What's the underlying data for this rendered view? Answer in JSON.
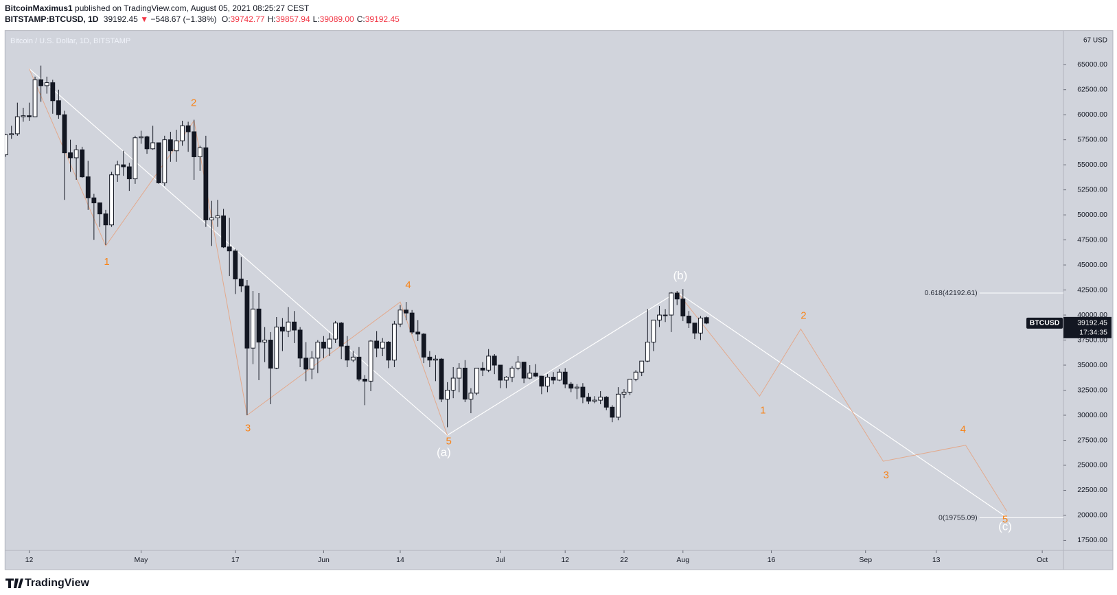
{
  "header": {
    "author": "BitcoinMaximus1",
    "published": "published on TradingView.com, August 05, 2021 08:25:27 CEST",
    "symbol": "BITSTAMP:BTCUSD, 1D",
    "last": "39192.45",
    "arrow": "▼",
    "change": "−548.67 (−1.38%)",
    "ohlc": [
      {
        "label": "O:",
        "value": "39742.77"
      },
      {
        "label": "H:",
        "value": "39857.94"
      },
      {
        "label": "L:",
        "value": "39089.00"
      },
      {
        "label": "C:",
        "value": "39192.45"
      }
    ]
  },
  "footer": "TradingView",
  "chart_data": {
    "type": "candlestick",
    "title": "Bitcoin / U.S. Dollar, 1D, BITSTAMP",
    "background": "#d1d4dc",
    "up_color": "#ffffff",
    "down_color": "#131722",
    "xlim": [
      -4.1,
      175.6
    ],
    "ylim": [
      16500,
      68400
    ],
    "grid": false,
    "xticks": [
      {
        "value": 0,
        "label": "12"
      },
      {
        "value": 19,
        "label": "May"
      },
      {
        "value": 35,
        "label": "17"
      },
      {
        "value": 50,
        "label": "Jun"
      },
      {
        "value": 63,
        "label": "14"
      },
      {
        "value": 80,
        "label": "Jul"
      },
      {
        "value": 91,
        "label": "12"
      },
      {
        "value": 101,
        "label": "22"
      },
      {
        "value": 111,
        "label": "Aug"
      },
      {
        "value": 126,
        "label": "16"
      },
      {
        "value": 142,
        "label": "Sep"
      },
      {
        "value": 154,
        "label": "13"
      },
      {
        "value": 172,
        "label": "Oct"
      }
    ],
    "yticks": [
      {
        "value": 17500,
        "label": "17500.00"
      },
      {
        "value": 20000,
        "label": "20000.00"
      },
      {
        "value": 22500,
        "label": "22500.00"
      },
      {
        "value": 25000,
        "label": "25000.00"
      },
      {
        "value": 27500,
        "label": "27500.00"
      },
      {
        "value": 30000,
        "label": "30000.00"
      },
      {
        "value": 32500,
        "label": "32500.00"
      },
      {
        "value": 35000,
        "label": "35000.00"
      },
      {
        "value": 37500,
        "label": "37500.00"
      },
      {
        "value": 40000,
        "label": "40000.00"
      },
      {
        "value": 42500,
        "label": "42500.00"
      },
      {
        "value": 45000,
        "label": "45000.00"
      },
      {
        "value": 47500,
        "label": "47500.00"
      },
      {
        "value": 50000,
        "label": "50000.00"
      },
      {
        "value": 52500,
        "label": "52500.00"
      },
      {
        "value": 55000,
        "label": "55000.00"
      },
      {
        "value": 57500,
        "label": "57500.00"
      },
      {
        "value": 60000,
        "label": "60000.00"
      },
      {
        "value": 62500,
        "label": "62500.00"
      },
      {
        "value": 65000,
        "label": "65000.00"
      }
    ],
    "scale_top_label": "67 USD",
    "x": [
      -4,
      -3,
      -2,
      -1,
      0,
      1,
      2,
      3,
      4,
      5,
      6,
      7,
      8,
      9,
      10,
      11,
      12,
      13,
      14,
      15,
      16,
      17,
      18,
      19,
      20,
      21,
      22,
      23,
      24,
      25,
      26,
      27,
      28,
      29,
      30,
      31,
      32,
      33,
      34,
      35,
      36,
      37,
      38,
      39,
      40,
      41,
      42,
      43,
      44,
      45,
      46,
      47,
      48,
      49,
      50,
      51,
      52,
      53,
      54,
      55,
      56,
      57,
      58,
      59,
      60,
      61,
      62,
      63,
      64,
      65,
      66,
      67,
      68,
      69,
      70,
      71,
      72,
      73,
      74,
      75,
      76,
      77,
      78,
      79,
      80,
      81,
      82,
      83,
      84,
      85,
      86,
      87,
      88,
      89,
      90,
      91,
      92,
      93,
      94,
      95,
      96,
      97,
      98,
      99,
      100,
      101,
      102,
      103,
      104,
      105,
      106,
      107,
      108,
      109,
      110,
      111,
      112,
      113,
      114,
      115
    ],
    "ohlc": [
      [
        56000,
        58100,
        55800,
        58000
      ],
      [
        58000,
        58900,
        57600,
        58100
      ],
      [
        58100,
        61200,
        57900,
        59800
      ],
      [
        59800,
        60700,
        59300,
        59900
      ],
      [
        59900,
        61200,
        59400,
        59800
      ],
      [
        59800,
        63800,
        59800,
        63500
      ],
      [
        63500,
        64900,
        61300,
        62900
      ],
      [
        62900,
        63800,
        62100,
        63200
      ],
      [
        63200,
        63500,
        60100,
        61400
      ],
      [
        61400,
        62500,
        59600,
        60000
      ],
      [
        60000,
        60400,
        51500,
        56200
      ],
      [
        56200,
        57500,
        54300,
        55700
      ],
      [
        55700,
        57000,
        53500,
        56500
      ],
      [
        56500,
        56800,
        53700,
        53800
      ],
      [
        53800,
        55400,
        50500,
        51700
      ],
      [
        51700,
        52100,
        47500,
        51200
      ],
      [
        51200,
        51200,
        48800,
        50100
      ],
      [
        50100,
        50500,
        47000,
        49000
      ],
      [
        49000,
        54300,
        48800,
        54000
      ],
      [
        54000,
        55400,
        53300,
        55000
      ],
      [
        55000,
        56400,
        53900,
        54800
      ],
      [
        54800,
        55200,
        52400,
        53600
      ],
      [
        53600,
        57900,
        53100,
        57700
      ],
      [
        57700,
        58400,
        57100,
        57800
      ],
      [
        57800,
        57900,
        56100,
        56600
      ],
      [
        56600,
        58900,
        56500,
        57200
      ],
      [
        57200,
        57200,
        53100,
        53200
      ],
      [
        53200,
        57900,
        52900,
        57500
      ],
      [
        57500,
        58300,
        55300,
        56400
      ],
      [
        56400,
        58500,
        55300,
        57400
      ],
      [
        57400,
        59400,
        56900,
        58900
      ],
      [
        58900,
        59300,
        56300,
        58300
      ],
      [
        58300,
        59500,
        53500,
        55800
      ],
      [
        55800,
        56900,
        54400,
        56700
      ],
      [
        56700,
        57900,
        48800,
        49500
      ],
      [
        49500,
        51400,
        46900,
        49700
      ],
      [
        49700,
        51500,
        48800,
        49900
      ],
      [
        49900,
        50600,
        46700,
        46800
      ],
      [
        46800,
        49700,
        43900,
        46400
      ],
      [
        46400,
        46600,
        42100,
        43600
      ],
      [
        43600,
        45800,
        42300,
        42900
      ],
      [
        42900,
        43500,
        30000,
        36700
      ],
      [
        36700,
        42400,
        35100,
        40600
      ],
      [
        40600,
        42200,
        33500,
        37300
      ],
      [
        37300,
        38800,
        35300,
        37500
      ],
      [
        37500,
        38300,
        31100,
        34700
      ],
      [
        34700,
        39800,
        34600,
        38800
      ],
      [
        38800,
        39700,
        36400,
        38400
      ],
      [
        38400,
        40800,
        37800,
        39300
      ],
      [
        39300,
        40400,
        37200,
        38500
      ],
      [
        38500,
        38800,
        34800,
        35700
      ],
      [
        35700,
        37300,
        33400,
        34600
      ],
      [
        34600,
        36400,
        33600,
        35700
      ],
      [
        35700,
        37500,
        34200,
        37300
      ],
      [
        37300,
        37900,
        35700,
        36700
      ],
      [
        36700,
        38200,
        35900,
        37600
      ],
      [
        37600,
        39400,
        37200,
        39200
      ],
      [
        39200,
        39300,
        35600,
        36900
      ],
      [
        36900,
        37900,
        34800,
        35500
      ],
      [
        35500,
        36400,
        35300,
        35800
      ],
      [
        35800,
        36800,
        33400,
        33600
      ],
      [
        33600,
        34000,
        31000,
        33400
      ],
      [
        33400,
        37500,
        32400,
        37400
      ],
      [
        37400,
        38400,
        35800,
        36700
      ],
      [
        36700,
        37700,
        35900,
        37300
      ],
      [
        37300,
        37400,
        34700,
        35500
      ],
      [
        35500,
        39400,
        34800,
        39100
      ],
      [
        39100,
        41000,
        38800,
        40500
      ],
      [
        40500,
        41300,
        39500,
        40200
      ],
      [
        40200,
        40500,
        38100,
        38300
      ],
      [
        38300,
        39500,
        37400,
        38100
      ],
      [
        38100,
        38200,
        35200,
        35800
      ],
      [
        35800,
        36400,
        34800,
        35500
      ],
      [
        35500,
        36000,
        33400,
        35600
      ],
      [
        35600,
        35700,
        31300,
        31600
      ],
      [
        31600,
        33300,
        28800,
        32500
      ],
      [
        32500,
        34800,
        31700,
        33700
      ],
      [
        33700,
        35200,
        32300,
        34700
      ],
      [
        34700,
        35500,
        31300,
        31600
      ],
      [
        31600,
        32700,
        30200,
        32200
      ],
      [
        32200,
        34700,
        32000,
        34700
      ],
      [
        34700,
        35300,
        33900,
        34500
      ],
      [
        34500,
        36600,
        34300,
        35900
      ],
      [
        35900,
        36100,
        34100,
        35000
      ],
      [
        35000,
        35000,
        32700,
        33500
      ],
      [
        33500,
        33900,
        32700,
        33800
      ],
      [
        33800,
        34900,
        33300,
        34700
      ],
      [
        34700,
        35900,
        34500,
        35300
      ],
      [
        35300,
        35300,
        33200,
        33700
      ],
      [
        33700,
        35000,
        33600,
        34200
      ],
      [
        34200,
        35100,
        33800,
        33900
      ],
      [
        33900,
        33900,
        32100,
        32900
      ],
      [
        32900,
        34100,
        32300,
        33800
      ],
      [
        33800,
        34300,
        33100,
        33500
      ],
      [
        33500,
        34600,
        33400,
        34300
      ],
      [
        34300,
        34700,
        32700,
        33100
      ],
      [
        33100,
        33300,
        32300,
        32700
      ],
      [
        32700,
        33100,
        31600,
        32800
      ],
      [
        32800,
        33200,
        31200,
        31800
      ],
      [
        31800,
        32200,
        31100,
        31400
      ],
      [
        31400,
        31900,
        31200,
        31500
      ],
      [
        31500,
        32400,
        31100,
        31800
      ],
      [
        31800,
        31900,
        30500,
        30800
      ],
      [
        30800,
        31000,
        29300,
        29800
      ],
      [
        29800,
        32800,
        29500,
        32100
      ],
      [
        32100,
        32600,
        31700,
        32300
      ],
      [
        32300,
        33600,
        32000,
        33600
      ],
      [
        33600,
        34500,
        33400,
        34300
      ],
      [
        34300,
        35400,
        33900,
        35400
      ],
      [
        35400,
        40600,
        35300,
        37300
      ],
      [
        37300,
        39500,
        36400,
        39500
      ],
      [
        39500,
        40900,
        38800,
        40000
      ],
      [
        40000,
        40600,
        39300,
        40000
      ],
      [
        40000,
        42300,
        38300,
        42200
      ],
      [
        42200,
        42400,
        41000,
        41600
      ],
      [
        41600,
        42600,
        39400,
        39900
      ],
      [
        39900,
        40400,
        38700,
        39200
      ],
      [
        39200,
        39200,
        37600,
        38200
      ],
      [
        38200,
        39900,
        37500,
        39700
      ],
      [
        39742.77,
        39857.94,
        39089,
        39192.45
      ]
    ],
    "lines": [
      {
        "color": "#ffffff",
        "x": [
          0,
          71,
          110,
          166
        ],
        "values": [
          64600,
          28000,
          42300,
          19800
        ]
      },
      {
        "color": "#e3a98c",
        "x": [
          0,
          13,
          28,
          37,
          63,
          71
        ],
        "values": [
          64600,
          46900,
          59400,
          30000,
          41300,
          28000
        ]
      },
      {
        "color": "#e3a98c",
        "x": [
          110,
          124,
          131,
          145,
          159,
          166
        ],
        "values": [
          42300,
          31900,
          38600,
          25400,
          27000,
          20400
        ]
      }
    ],
    "fib_levels": [
      {
        "value": 42192.61,
        "label": "0.618(42192.61)"
      },
      {
        "value": 19755.09,
        "label": "0(19755.09)"
      }
    ],
    "wave_labels": [
      {
        "text": "1",
        "color": "#f7841a"
      },
      {
        "text": "2",
        "color": "#f7841a"
      },
      {
        "text": "3",
        "color": "#f7841a"
      },
      {
        "text": "4",
        "color": "#f7841a"
      },
      {
        "text": "5",
        "color": "#f7841a"
      },
      {
        "text": "(a)",
        "color": "#ffffff"
      },
      {
        "text": "(b)",
        "color": "#ffffff"
      },
      {
        "text": "1",
        "color": "#f7841a"
      },
      {
        "text": "2",
        "color": "#f7841a"
      },
      {
        "text": "3",
        "color": "#f7841a"
      },
      {
        "text": "4",
        "color": "#f7841a"
      },
      {
        "text": "5",
        "color": "#f7841a"
      },
      {
        "text": "(c)",
        "color": "#ffffff"
      }
    ],
    "last_price": {
      "symbol": "BTCUSD",
      "value": 39192.45,
      "countdown": "17:34:35"
    }
  }
}
